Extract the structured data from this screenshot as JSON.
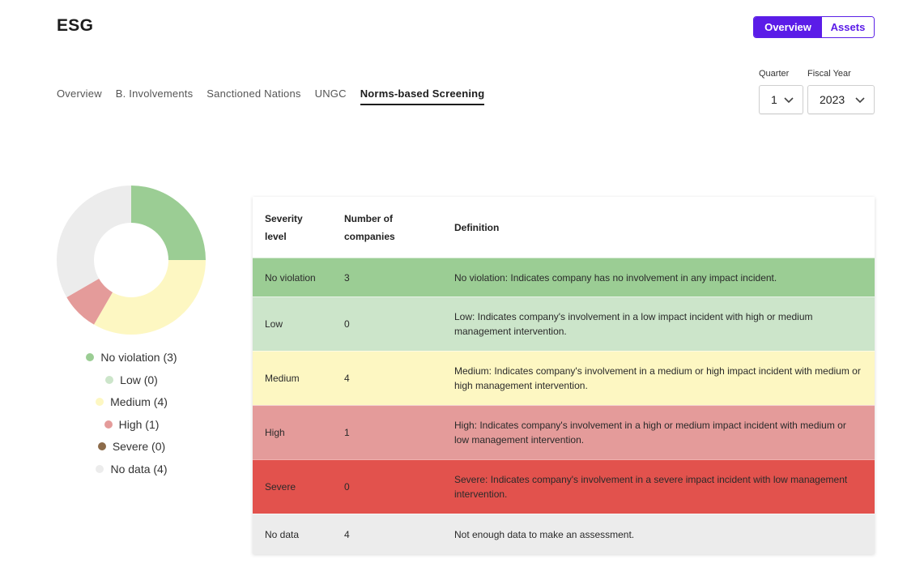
{
  "header": {
    "title": "ESG",
    "view_toggle": {
      "overview": "Overview",
      "assets": "Assets"
    }
  },
  "tabs": [
    {
      "label": "Overview"
    },
    {
      "label": "B. Involvements"
    },
    {
      "label": "Sanctioned Nations"
    },
    {
      "label": "UNGC"
    },
    {
      "label": "Norms-based Screening"
    }
  ],
  "filters": {
    "quarter": {
      "label": "Quarter",
      "value": "1"
    },
    "fiscal_year": {
      "label": "Fiscal Year",
      "value": "2023"
    }
  },
  "chart_data": {
    "type": "pie",
    "variant": "donut",
    "categories": [
      "No violation",
      "Low",
      "Medium",
      "High",
      "Severe",
      "No data"
    ],
    "values": [
      3,
      0,
      4,
      1,
      0,
      4
    ],
    "colors": [
      "#9bcd94",
      "#cce5ca",
      "#fdf7c2",
      "#e49b9a",
      "#8c6b4a",
      "#ececec"
    ]
  },
  "legend": [
    {
      "label": "No violation (3)",
      "color": "#9bcd94"
    },
    {
      "label": "Low (0)",
      "color": "#cce5ca"
    },
    {
      "label": "Medium (4)",
      "color": "#fdf7c2"
    },
    {
      "label": "High (1)",
      "color": "#e49b9a"
    },
    {
      "label": "Severe (0)",
      "color": "#8c6b4a"
    },
    {
      "label": "No data (4)",
      "color": "#ececec"
    }
  ],
  "table": {
    "headers": {
      "severity": "Severity level",
      "count": "Number of companies",
      "definition": "Definition"
    },
    "rows": [
      {
        "severity": "No violation",
        "count": "3",
        "definition": "No violation: Indicates company has no involvement in any impact incident.",
        "color": "#9bcd94"
      },
      {
        "severity": "Low",
        "count": "0",
        "definition": "Low: Indicates company's involvement in a low impact incident with high or medium management intervention.",
        "color": "#cce5ca"
      },
      {
        "severity": "Medium",
        "count": "4",
        "definition": "Medium: Indicates company's involvement in a medium or high impact incident with medium or high management intervention.",
        "color": "#fdf7c2"
      },
      {
        "severity": "High",
        "count": "1",
        "definition": "High: Indicates company's involvement in a high or medium impact incident with medium or low management intervention.",
        "color": "#e49b9a"
      },
      {
        "severity": "Severe",
        "count": "0",
        "definition": "Severe: Indicates company's involvement in a severe impact incident with low management intervention.",
        "color": "#e2524d"
      },
      {
        "severity": "No data",
        "count": "4",
        "definition": "Not enough data to make an assessment.",
        "color": "#ececec"
      }
    ]
  }
}
